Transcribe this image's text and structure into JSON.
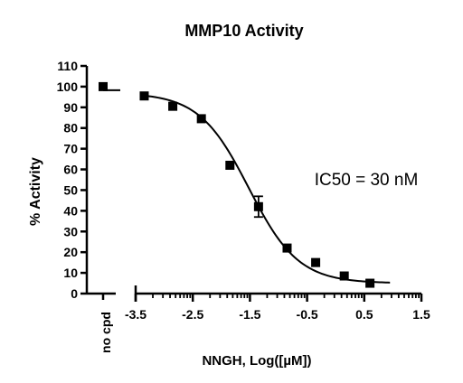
{
  "chart_data": {
    "type": "scatter",
    "title": "MMP10 Activity",
    "xlabel": "NNGH, Log([µM])",
    "ylabel": "% Activity",
    "annotation": "IC50 = 30 nM",
    "xlim": [
      -3.5,
      1.5
    ],
    "ylim": [
      0,
      110
    ],
    "y_ticks": [
      0,
      10,
      20,
      30,
      40,
      50,
      60,
      70,
      80,
      90,
      100,
      110
    ],
    "x_ticks": [
      -3.5,
      -2.5,
      -1.5,
      -0.5,
      0.5,
      1.5
    ],
    "x_tick_labels": [
      "-3.5",
      "-2.5",
      "-1.5",
      "-0.5",
      "0.5",
      "1.5"
    ],
    "control": {
      "label": "no cpd",
      "value": 100
    },
    "points": [
      {
        "x": -3.35,
        "y": 95.5
      },
      {
        "x": -2.85,
        "y": 90.5
      },
      {
        "x": -2.35,
        "y": 84.5
      },
      {
        "x": -1.85,
        "y": 62
      },
      {
        "x": -1.35,
        "y": 42,
        "err": 5
      },
      {
        "x": -0.85,
        "y": 22
      },
      {
        "x": -0.35,
        "y": 15
      },
      {
        "x": 0.15,
        "y": 8.5
      },
      {
        "x": 0.6,
        "y": 5
      }
    ],
    "fit": {
      "top": 97,
      "bottom": 5,
      "log_ic50": -1.52,
      "hill": -1.0,
      "x_range": [
        -3.4,
        0.95
      ]
    },
    "grid": false,
    "legend": "none"
  }
}
